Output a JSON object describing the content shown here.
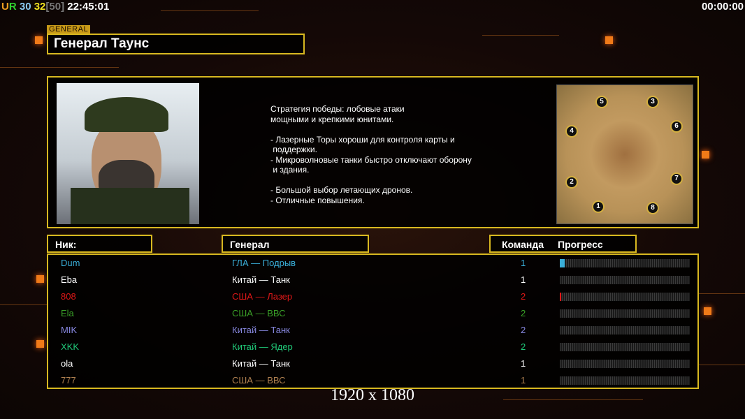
{
  "hud": {
    "u": "U",
    "r": "R",
    "n1": "30",
    "n2": "32",
    "bracket": "[50]",
    "time": "22:45:01",
    "game_time": "00:00:00"
  },
  "colors": {
    "accent": "#d8b820",
    "frame": "#d8b820"
  },
  "header": {
    "section_label": "GENERAL",
    "general_name": "Генерал Таунс"
  },
  "description": "Стратегия победы: лобовые атаки\nмощными и крепкими юнитами.\n\n- Лазерные Торы хороши для контроля карты и\n поддержки.\n- Микроволновые танки быстро отключают оборону\n и здания.\n\n- Большой выбор летающих дронов.\n- Отличные повышения.",
  "map": {
    "spots": [
      "1",
      "2",
      "3",
      "4",
      "5",
      "6",
      "7",
      "8"
    ]
  },
  "columns": {
    "nick": "Ник:",
    "general": "Генерал",
    "team": "Команда",
    "progress": "Прогресс"
  },
  "players": [
    {
      "nick": "Dum",
      "general": "ГЛА — Подрыв",
      "team": "1",
      "progress": 4,
      "color": "#3aaed8"
    },
    {
      "nick": "Eba",
      "general": "Китай — Танк",
      "team": "1",
      "progress": 0,
      "color": "#ffffff"
    },
    {
      "nick": "808",
      "general": "США — Лазер",
      "team": "2",
      "progress": 1,
      "color": "#e01818"
    },
    {
      "nick": "Ela",
      "general": "США — ВВС",
      "team": "2",
      "progress": 0,
      "color": "#3aa028"
    },
    {
      "nick": "MIK",
      "general": "Китай — Танк",
      "team": "2",
      "progress": 0,
      "color": "#8888e0"
    },
    {
      "nick": "XKK",
      "general": "Китай — Ядер",
      "team": "2",
      "progress": 0,
      "color": "#20c878"
    },
    {
      "nick": "ola",
      "general": "Китай — Танк",
      "team": "1",
      "progress": 0,
      "color": "#ffffff"
    },
    {
      "nick": "777",
      "general": "США — ВВС",
      "team": "1",
      "progress": 0,
      "color": "#b08050"
    }
  ],
  "resolution": "1920 x 1080"
}
